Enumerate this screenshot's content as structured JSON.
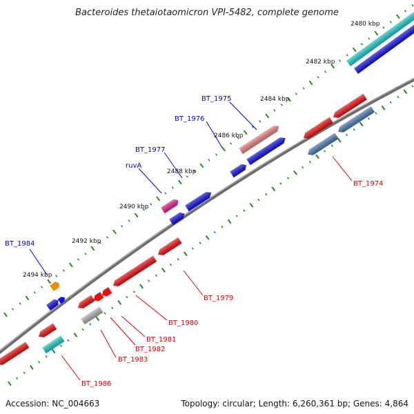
{
  "title": "Bacteroides thetaiotaomicron VPI-5482, complete genome",
  "accession": "Accession: NC_004663",
  "summary": "Topology: circular; Length: 6,260,361 bp; Genes: 4,864",
  "colors": {
    "backbone": "#808080",
    "tick": "#1a8a1a",
    "label_forward": "#0000cc",
    "label_reverse": "#dd0000"
  },
  "ticks": [
    {
      "label": "2480 kbp"
    },
    {
      "label": "2482 kbp"
    },
    {
      "label": "2484 kbp"
    },
    {
      "label": "2486 kbp"
    },
    {
      "label": "2488 kbp"
    },
    {
      "label": "2490 kbp"
    },
    {
      "label": "2492 kbp"
    },
    {
      "label": "2494 kbp"
    }
  ],
  "genes_forward": [
    {
      "label": "BT_1975",
      "color": "#e88080"
    },
    {
      "label": "BT_1976",
      "color": "#1010e0"
    },
    {
      "label": "BT_1977",
      "color": "#1010e0"
    },
    {
      "label": "ruvA",
      "color": "#e0208a"
    },
    {
      "label": "BT_1984",
      "color": "#1010e0"
    }
  ],
  "genes_reverse": [
    {
      "label": "BT_1974",
      "color": "#4a7ab0"
    },
    {
      "label": "BT_1979",
      "color": "#e81010"
    },
    {
      "label": "BT_1980",
      "color": "#e81010"
    },
    {
      "label": "BT_1981",
      "color": "#e81010"
    },
    {
      "label": "BT_1982",
      "color": "#e81010"
    },
    {
      "label": "BT_1983",
      "color": "#b0b0b0"
    },
    {
      "label": "BT_1986",
      "color": "#20c8c8"
    }
  ],
  "unlabeled_features": [
    {
      "color": "#20c8c8"
    },
    {
      "color": "#1010e0"
    },
    {
      "color": "#e8900a"
    }
  ]
}
